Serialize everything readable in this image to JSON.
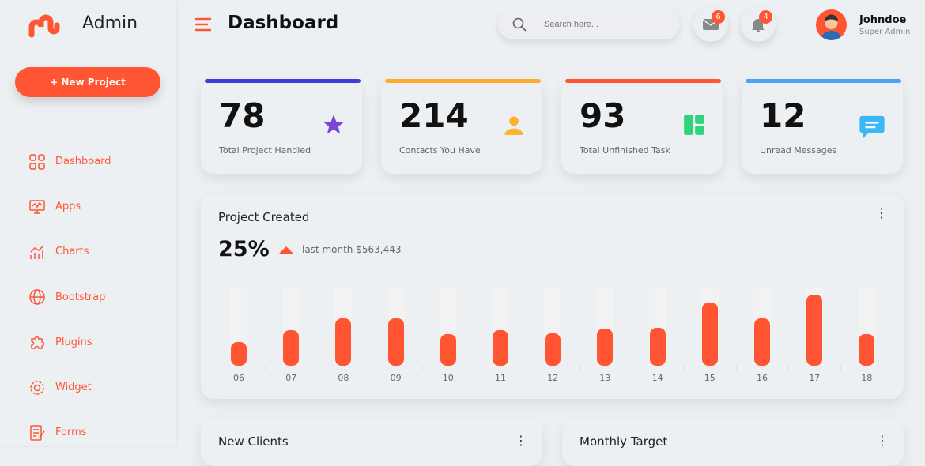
{
  "brand": {
    "name": "Admin",
    "accent": "#ff5533"
  },
  "sidebar": {
    "new_project": "+ New Project",
    "items": [
      {
        "label": "Dashboard",
        "icon": "grid-icon"
      },
      {
        "label": "Apps",
        "icon": "monitor-icon"
      },
      {
        "label": "Charts",
        "icon": "chart-icon"
      },
      {
        "label": "Bootstrap",
        "icon": "globe-icon"
      },
      {
        "label": "Plugins",
        "icon": "puzzle-icon"
      },
      {
        "label": "Widget",
        "icon": "gear-icon"
      },
      {
        "label": "Forms",
        "icon": "form-icon"
      }
    ]
  },
  "header": {
    "title": "Dashboard",
    "search_placeholder": "Search here...",
    "messages_count": "6",
    "notifications_count": "4",
    "user_name": "Johndoe",
    "user_role": "Super Admin"
  },
  "stats": [
    {
      "value": "78",
      "label": "Total Project Handled",
      "color": "#3b3fd8",
      "icon": "star-icon"
    },
    {
      "value": "214",
      "label": "Contacts You Have",
      "color": "#ffab2e",
      "icon": "user-icon"
    },
    {
      "value": "93",
      "label": "Total Unfinished Task",
      "color": "#ff5533",
      "icon": "board-icon"
    },
    {
      "value": "12",
      "label": "Unread Messages",
      "color": "#4aa3f7",
      "icon": "chat-icon"
    }
  ],
  "project": {
    "title": "Project Created",
    "percent": "25%",
    "subtitle": "last month $563,443"
  },
  "chart_data": {
    "type": "bar",
    "categories": [
      "06",
      "07",
      "08",
      "09",
      "10",
      "11",
      "12",
      "13",
      "14",
      "15",
      "16",
      "17",
      "18"
    ],
    "values": [
      30,
      45,
      60,
      60,
      40,
      45,
      41,
      47,
      48,
      80,
      60,
      90,
      40
    ],
    "ylim": [
      0,
      100
    ],
    "grid": false
  },
  "bottom": {
    "left_title": "New Clients",
    "right_title": "Monthly Target"
  }
}
